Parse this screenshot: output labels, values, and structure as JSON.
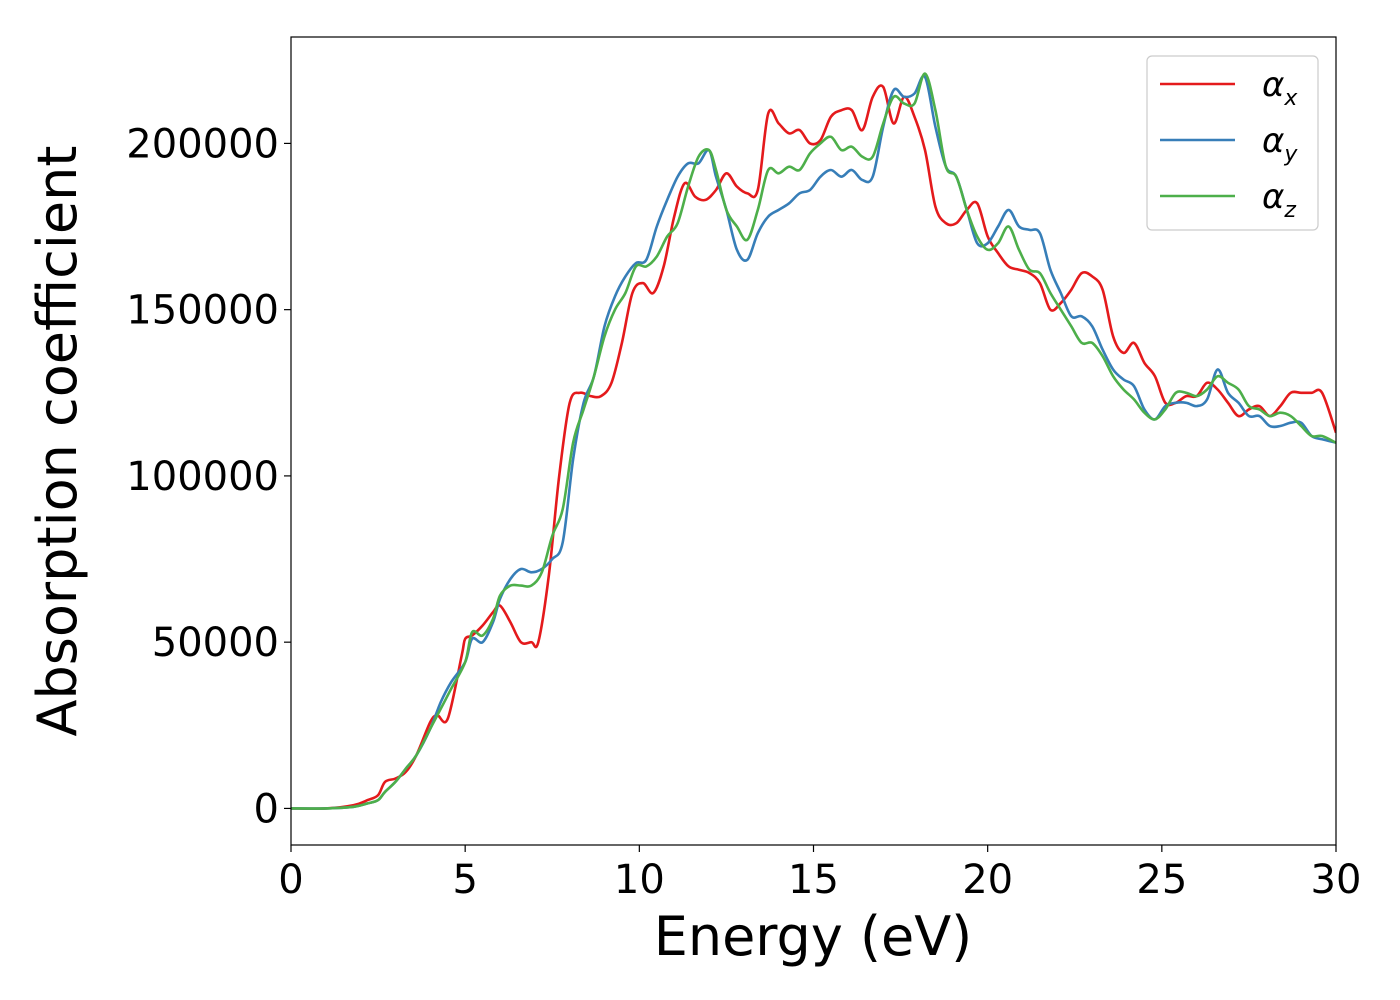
{
  "chart_data": {
    "type": "line",
    "title": "",
    "xlabel": "Energy (eV)",
    "ylabel": "Absorption coefficient",
    "xlim": [
      0,
      30
    ],
    "ylim": [
      -11000,
      232000
    ],
    "xticks": [
      0,
      5,
      10,
      15,
      20,
      25,
      30
    ],
    "yticks": [
      0,
      50000,
      100000,
      150000,
      200000
    ],
    "grid": false,
    "legend_position": "top-right",
    "series": [
      {
        "name": "α",
        "subscript": "x",
        "color": "#e41a1c",
        "x": [
          0,
          1,
          1.8,
          2.2,
          2.5,
          2.7,
          3.0,
          3.3,
          3.6,
          4.0,
          4.2,
          4.5,
          4.9,
          5.0,
          5.2,
          5.5,
          5.8,
          6.0,
          6.3,
          6.6,
          6.9,
          7.1,
          7.4,
          7.7,
          8.0,
          8.3,
          8.6,
          8.9,
          9.2,
          9.5,
          9.8,
          10.1,
          10.4,
          10.7,
          11.0,
          11.3,
          11.6,
          11.9,
          12.2,
          12.5,
          12.8,
          13.1,
          13.4,
          13.7,
          14.0,
          14.3,
          14.6,
          14.9,
          15.2,
          15.5,
          15.8,
          16.1,
          16.4,
          16.7,
          17.0,
          17.3,
          17.6,
          17.9,
          18.2,
          18.5,
          18.8,
          19.1,
          19.4,
          19.7,
          20.0,
          20.3,
          20.6,
          20.9,
          21.2,
          21.5,
          21.8,
          22.1,
          22.4,
          22.7,
          23.0,
          23.3,
          23.6,
          23.9,
          24.2,
          24.5,
          24.8,
          25.1,
          25.4,
          25.7,
          26.0,
          26.3,
          26.6,
          26.9,
          27.2,
          27.5,
          27.8,
          28.1,
          28.4,
          28.7,
          29.0,
          29.3,
          29.6,
          30
        ],
        "values": [
          0,
          0,
          1000,
          2500,
          4000,
          8000,
          9000,
          11000,
          16000,
          26000,
          28000,
          27000,
          46000,
          51000,
          52000,
          55000,
          59000,
          61000,
          56000,
          50000,
          50000,
          50000,
          70000,
          100000,
          122000,
          125000,
          124000,
          124000,
          128000,
          140000,
          155000,
          158000,
          155000,
          163000,
          178000,
          188000,
          184000,
          183000,
          186000,
          191000,
          187000,
          185000,
          186000,
          209000,
          206000,
          203000,
          204000,
          200000,
          201000,
          208000,
          210000,
          210000,
          204000,
          214000,
          217000,
          206000,
          214000,
          208000,
          198000,
          181000,
          176000,
          176000,
          180000,
          182000,
          172000,
          167000,
          163000,
          162000,
          161000,
          158000,
          150000,
          152000,
          156000,
          161000,
          160000,
          156000,
          142000,
          137000,
          140000,
          134000,
          130000,
          122000,
          122000,
          124000,
          124000,
          128000,
          126000,
          122000,
          118000,
          120000,
          121000,
          118000,
          121000,
          125000,
          125000,
          125000,
          125000,
          113000
        ]
      },
      {
        "name": "α",
        "subscript": "y",
        "color": "#377eb8",
        "x": [
          0,
          1,
          1.8,
          2.2,
          2.5,
          2.7,
          3.0,
          3.3,
          3.6,
          4.0,
          4.3,
          4.6,
          5.0,
          5.2,
          5.5,
          5.8,
          6.0,
          6.3,
          6.6,
          6.9,
          7.2,
          7.5,
          7.8,
          8.1,
          8.4,
          8.7,
          9.0,
          9.3,
          9.6,
          9.9,
          10.2,
          10.5,
          10.8,
          11.1,
          11.4,
          11.7,
          12.0,
          12.2,
          12.5,
          12.8,
          13.1,
          13.4,
          13.7,
          14.0,
          14.3,
          14.6,
          14.9,
          15.2,
          15.5,
          15.8,
          16.1,
          16.4,
          16.7,
          17.0,
          17.3,
          17.6,
          17.9,
          18.2,
          18.5,
          18.8,
          19.1,
          19.4,
          19.7,
          20.0,
          20.3,
          20.6,
          20.9,
          21.2,
          21.5,
          21.8,
          22.1,
          22.4,
          22.7,
          23.0,
          23.3,
          23.6,
          23.9,
          24.2,
          24.5,
          24.8,
          25.1,
          25.4,
          25.7,
          26.0,
          26.3,
          26.6,
          26.9,
          27.2,
          27.5,
          27.8,
          28.1,
          28.4,
          28.7,
          29.0,
          29.3,
          29.6,
          30
        ],
        "values": [
          0,
          0,
          500,
          1500,
          2500,
          5000,
          8000,
          12000,
          16000,
          24000,
          32000,
          38000,
          44000,
          51000,
          50000,
          56000,
          63000,
          69000,
          72000,
          71000,
          72000,
          75000,
          80000,
          105000,
          122000,
          130000,
          145000,
          154000,
          160000,
          164000,
          165000,
          175000,
          183000,
          190000,
          194000,
          194000,
          198000,
          190000,
          180000,
          168000,
          165000,
          173000,
          178000,
          180000,
          182000,
          185000,
          186000,
          190000,
          192000,
          190000,
          192000,
          189000,
          190000,
          205000,
          216000,
          214000,
          215000,
          220000,
          205000,
          193000,
          190000,
          180000,
          170000,
          170000,
          175000,
          180000,
          175000,
          174000,
          173000,
          162000,
          155000,
          148000,
          148000,
          145000,
          138000,
          132000,
          129000,
          127000,
          120000,
          117000,
          121000,
          122000,
          122000,
          121000,
          123000,
          132000,
          125000,
          122000,
          118000,
          118000,
          115000,
          115000,
          116000,
          116000,
          112000,
          111000,
          110000
        ]
      },
      {
        "name": "α",
        "subscript": "z",
        "color": "#4daf4a",
        "x": [
          0,
          1,
          1.8,
          2.2,
          2.5,
          2.7,
          3.0,
          3.3,
          3.6,
          4.0,
          4.3,
          4.6,
          5.0,
          5.2,
          5.5,
          5.8,
          6.0,
          6.3,
          6.6,
          6.9,
          7.2,
          7.5,
          7.8,
          8.1,
          8.4,
          8.7,
          9.0,
          9.3,
          9.6,
          9.9,
          10.2,
          10.5,
          10.8,
          11.1,
          11.4,
          11.7,
          12.0,
          12.2,
          12.5,
          12.8,
          13.1,
          13.4,
          13.7,
          14.0,
          14.3,
          14.6,
          14.9,
          15.2,
          15.5,
          15.8,
          16.1,
          16.4,
          16.7,
          17.0,
          17.3,
          17.6,
          17.9,
          18.2,
          18.5,
          18.8,
          19.1,
          19.4,
          19.7,
          20.0,
          20.3,
          20.6,
          20.9,
          21.2,
          21.5,
          21.8,
          22.1,
          22.4,
          22.7,
          23.0,
          23.3,
          23.6,
          23.9,
          24.2,
          24.5,
          24.8,
          25.1,
          25.4,
          25.7,
          26.0,
          26.3,
          26.6,
          26.9,
          27.2,
          27.5,
          27.8,
          28.1,
          28.4,
          28.7,
          29.0,
          29.3,
          29.6,
          30
        ],
        "values": [
          0,
          0,
          500,
          1500,
          2500,
          5000,
          8000,
          12000,
          16000,
          24000,
          30000,
          36000,
          44000,
          53000,
          52000,
          57000,
          64000,
          67000,
          67000,
          67000,
          71000,
          82000,
          90000,
          110000,
          120000,
          130000,
          142000,
          150000,
          155000,
          163000,
          163000,
          166000,
          172000,
          176000,
          187000,
          196000,
          198000,
          192000,
          180000,
          175000,
          171000,
          180000,
          192000,
          191000,
          193000,
          192000,
          197000,
          200000,
          202000,
          198000,
          199000,
          196000,
          196000,
          206000,
          214000,
          212000,
          212000,
          221000,
          210000,
          193000,
          190000,
          180000,
          172000,
          168000,
          170000,
          175000,
          168000,
          162000,
          161000,
          155000,
          150000,
          145000,
          140000,
          140000,
          136000,
          130000,
          126000,
          123000,
          119000,
          117000,
          120000,
          125000,
          125000,
          124000,
          126000,
          130000,
          128000,
          126000,
          121000,
          120000,
          118000,
          119000,
          118000,
          115000,
          112000,
          112000,
          110000
        ]
      }
    ]
  }
}
